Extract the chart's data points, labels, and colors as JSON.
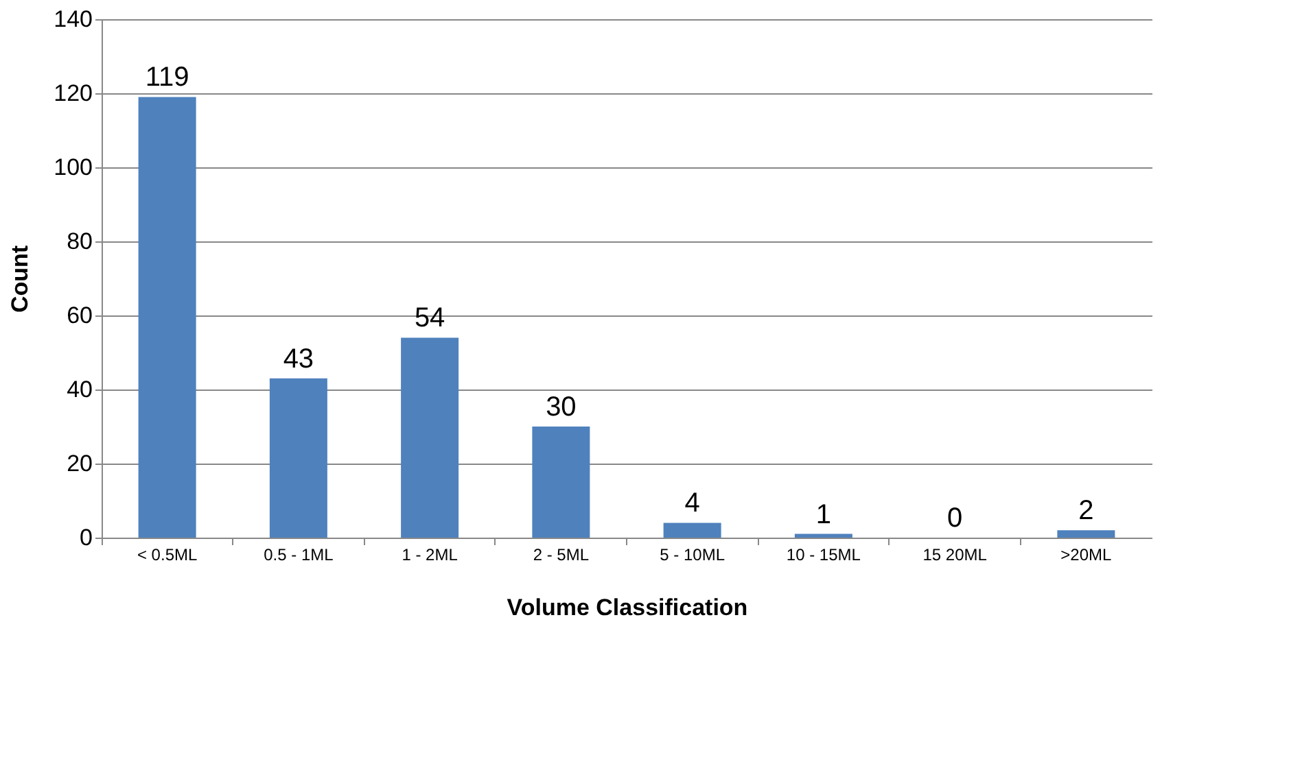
{
  "chart_data": {
    "type": "bar",
    "xlabel": "Volume Classification",
    "ylabel": "Count",
    "categories": [
      "< 0.5ML",
      "0.5 - 1ML",
      "1 - 2ML",
      "2 - 5ML",
      "5 - 10ML",
      "10 - 15ML",
      "15 20ML",
      ">20ML"
    ],
    "values": [
      119,
      43,
      54,
      30,
      4,
      1,
      0,
      2
    ],
    "color": "#4f81bd",
    "ylim": [
      0,
      140
    ],
    "yticks": [
      0,
      20,
      40,
      60,
      80,
      100,
      120,
      140
    ],
    "grid": "y",
    "data_labels": true
  }
}
